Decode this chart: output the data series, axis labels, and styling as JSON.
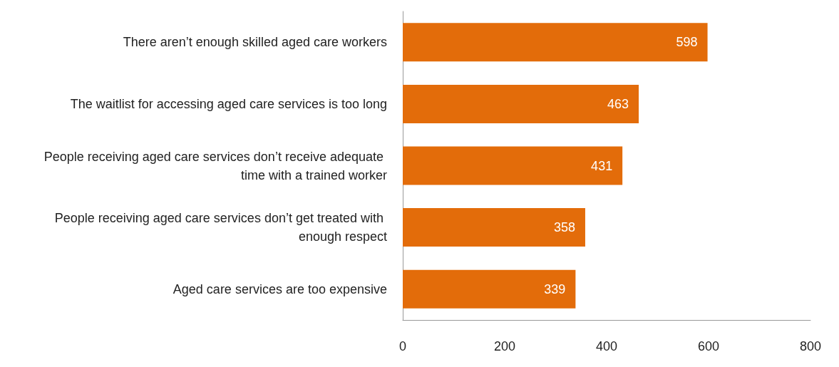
{
  "chart_data": {
    "type": "bar",
    "orientation": "horizontal",
    "categories": [
      "There aren’t enough skilled aged care workers",
      "The waitlist for accessing aged care services is too long",
      "People receiving aged care services don’t receive adequate time with a trained worker",
      "People receiving aged care services don’t get treated with enough respect",
      "Aged care services are too expensive"
    ],
    "values": [
      598,
      463,
      431,
      358,
      339
    ],
    "color": "#e36c0a",
    "xlim": [
      0,
      800
    ],
    "xticks": [
      0,
      200,
      400,
      600,
      800
    ],
    "data_labels": true
  }
}
